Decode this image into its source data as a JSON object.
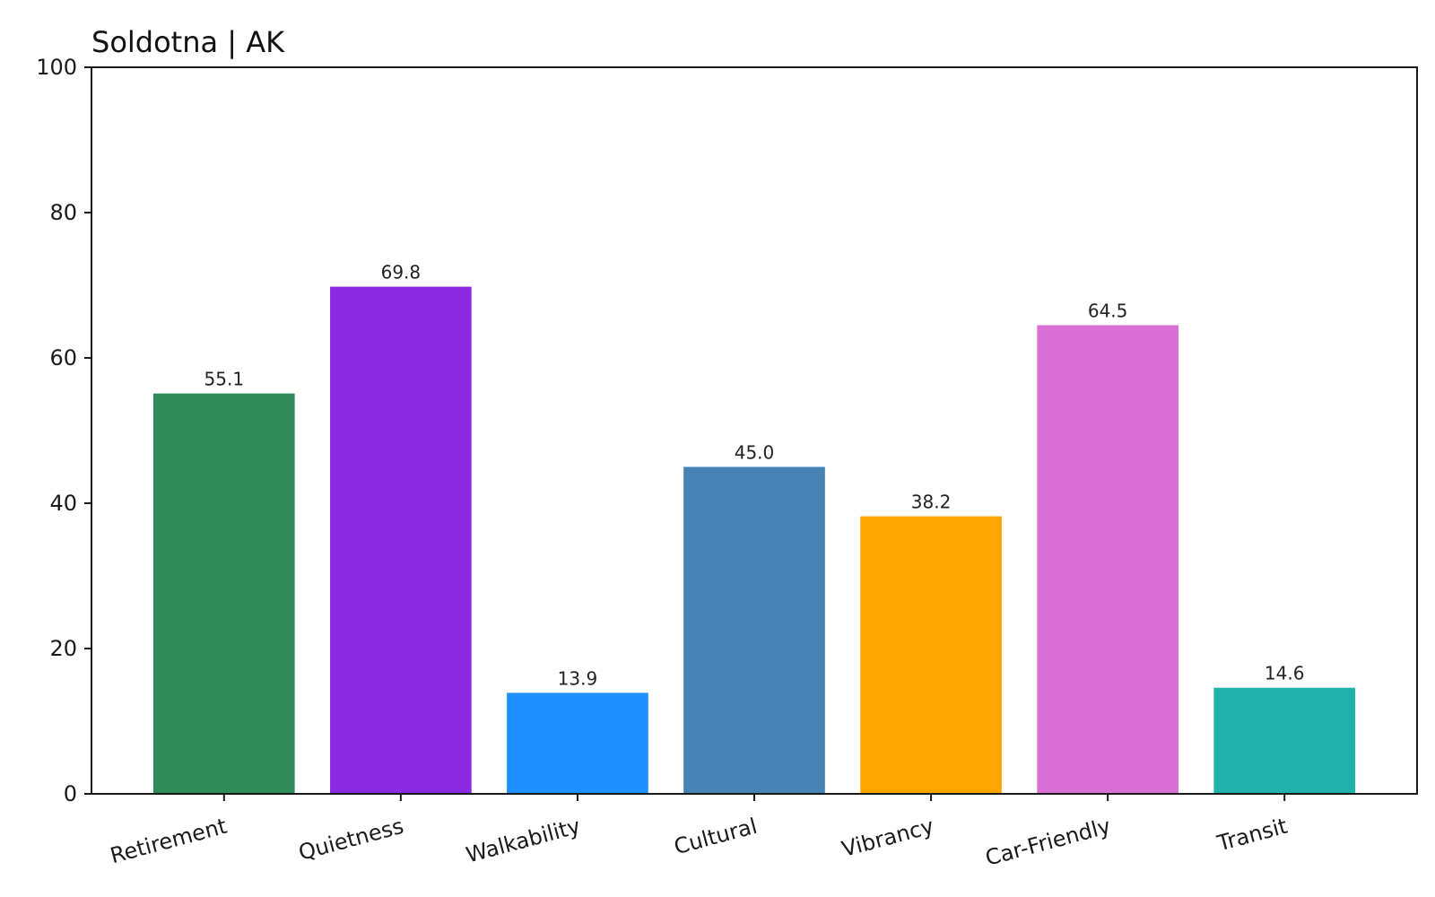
{
  "chart_data": {
    "type": "bar",
    "title": "Soldotna | AK",
    "xlabel": "",
    "ylabel": "",
    "ylim": [
      0,
      100
    ],
    "yticks": [
      0,
      20,
      40,
      60,
      80,
      100
    ],
    "grid": false,
    "categories": [
      "Retirement",
      "Quietness",
      "Walkability",
      "Cultural",
      "Vibrancy",
      "Car-Friendly",
      "Transit"
    ],
    "values": [
      55.1,
      69.8,
      13.9,
      45.0,
      38.2,
      64.5,
      14.6
    ],
    "value_labels": [
      "55.1",
      "69.8",
      "13.9",
      "45.0",
      "38.2",
      "64.5",
      "14.6"
    ],
    "colors": [
      "#2e8b57",
      "#8a2be2",
      "#1e90ff",
      "#4682b4",
      "#ffa500",
      "#da70d6",
      "#20b2aa"
    ]
  }
}
